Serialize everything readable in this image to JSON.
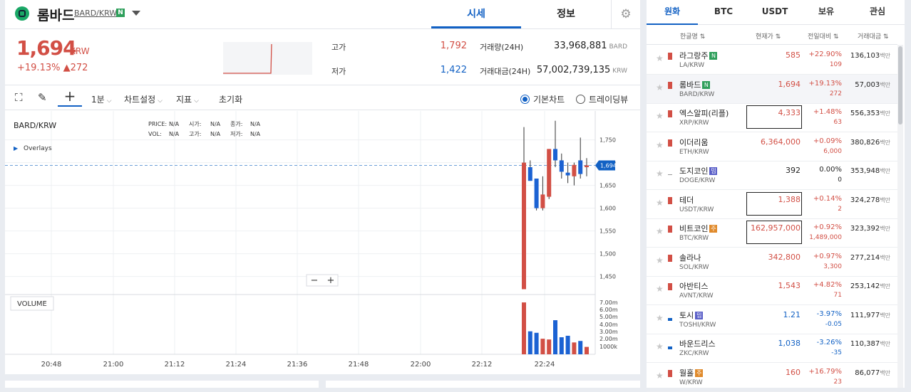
{
  "header": {
    "coin_name": "롬바드",
    "pair": "BARD/KRW",
    "badge": "N",
    "tabs": [
      "시세",
      "정보"
    ]
  },
  "price": {
    "value": "1,694",
    "unit": "KRW",
    "change_pct": "+19.13%",
    "change_amt": "▲272",
    "high_label": "고가",
    "high": "1,792",
    "low_label": "저가",
    "low": "1,422",
    "vol_label": "거래량(24H)",
    "vol": "33,968,881",
    "vol_unit": "BARD",
    "amt_label": "거래대금(24H)",
    "amt": "57,002,739,135",
    "amt_unit": "KRW"
  },
  "toolbar": {
    "interval": "1분",
    "chart_settings": "차트설정",
    "indicators": "지표",
    "reset": "초기화",
    "basic_chart": "기본차트",
    "trading_view": "트레이딩뷰"
  },
  "chart": {
    "symbol": "BARD/KRW",
    "overlays": "Overlays",
    "legend1": [
      "PRICE:",
      "N/A",
      "시가:",
      "N/A",
      "종가:",
      "N/A"
    ],
    "legend2": [
      "VOL:",
      "N/A",
      "고가:",
      "N/A",
      "저가:",
      "N/A"
    ],
    "volume_label": "VOLUME",
    "current": "1,694"
  },
  "chart_data": {
    "type": "candlestick",
    "x_ticks": [
      "20:48",
      "21:00",
      "21:12",
      "21:24",
      "21:36",
      "21:48",
      "22:00",
      "22:12",
      "22:24"
    ],
    "y_ticks": [
      "1,750",
      "1,700",
      "1,650",
      "1,600",
      "1,550",
      "1,500",
      "1,450"
    ],
    "vol_ticks": [
      "7.00m",
      "6.00m",
      "5.00m",
      "4.00m",
      "3.00m",
      "2.00m",
      "1000k"
    ],
    "ylim": [
      1415,
      1790
    ],
    "candles": [
      {
        "o": 1422,
        "h": 1778,
        "l": 1422,
        "c": 1700,
        "dir": "up"
      },
      {
        "o": 1690,
        "h": 1705,
        "l": 1660,
        "c": 1660,
        "dir": "down"
      },
      {
        "o": 1665,
        "h": 1665,
        "l": 1595,
        "c": 1600,
        "dir": "down"
      },
      {
        "o": 1600,
        "h": 1670,
        "l": 1595,
        "c": 1630,
        "dir": "up"
      },
      {
        "o": 1625,
        "h": 1730,
        "l": 1620,
        "c": 1730,
        "dir": "up"
      },
      {
        "o": 1730,
        "h": 1792,
        "l": 1690,
        "c": 1705,
        "dir": "down"
      },
      {
        "o": 1705,
        "h": 1720,
        "l": 1665,
        "c": 1680,
        "dir": "down"
      },
      {
        "o": 1678,
        "h": 1700,
        "l": 1655,
        "c": 1672,
        "dir": "down"
      },
      {
        "o": 1670,
        "h": 1700,
        "l": 1650,
        "c": 1695,
        "dir": "up"
      },
      {
        "o": 1705,
        "h": 1755,
        "l": 1665,
        "c": 1675,
        "dir": "down"
      },
      {
        "o": 1690,
        "h": 1710,
        "l": 1670,
        "c": 1694,
        "dir": "up"
      }
    ],
    "volumes": [
      7.0,
      3.1,
      2.9,
      2.1,
      2.0,
      4.6,
      2.3,
      2.5,
      1.6,
      1.8,
      1.0
    ]
  },
  "market": {
    "tabs": [
      "원화",
      "BTC",
      "USDT",
      "보유",
      "관심"
    ],
    "headers": [
      "한글명",
      "현재가",
      "전일대비",
      "거래대금"
    ],
    "vol_unit": "백만",
    "rows": [
      {
        "name": "라그랑주",
        "badge": "N",
        "bcolor": "#2e9f5b",
        "pair": "LA/KRW",
        "price": "585",
        "pct": "+22.90%",
        "amt": "109",
        "vol": "136,103",
        "dir": "up"
      },
      {
        "name": "롬바드",
        "badge": "N",
        "bcolor": "#2e9f5b",
        "pair": "BARD/KRW",
        "price": "1,694",
        "pct": "+19.13%",
        "amt": "272",
        "vol": "57,003",
        "dir": "up",
        "sel": true
      },
      {
        "name": "엑스알피(리플)",
        "badge": "",
        "pair": "XRP/KRW",
        "price": "4,333",
        "pct": "+1.48%",
        "amt": "63",
        "vol": "556,353",
        "dir": "up",
        "box": true
      },
      {
        "name": "이더리움",
        "badge": "",
        "pair": "ETH/KRW",
        "price": "6,364,000",
        "pct": "+0.09%",
        "amt": "6,000",
        "vol": "380,826",
        "dir": "up"
      },
      {
        "name": "도지코인",
        "badge": "밈",
        "bcolor": "#5a5fc8",
        "pair": "DOGE/KRW",
        "price": "392",
        "pct": "0.00%",
        "amt": "0",
        "vol": "353,948",
        "dir": "fl"
      },
      {
        "name": "테더",
        "badge": "",
        "pair": "USDT/KRW",
        "price": "1,388",
        "pct": "+0.14%",
        "amt": "2",
        "vol": "324,278",
        "dir": "up",
        "box": true
      },
      {
        "name": "비트코인",
        "badge": "주",
        "bcolor": "#e08a2b",
        "pair": "BTC/KRW",
        "price": "162,957,000",
        "pct": "+0.92%",
        "amt": "1,489,000",
        "vol": "323,392",
        "dir": "up",
        "box": true
      },
      {
        "name": "솔라나",
        "badge": "",
        "pair": "SOL/KRW",
        "price": "342,800",
        "pct": "+0.97%",
        "amt": "3,300",
        "vol": "277,214",
        "dir": "up"
      },
      {
        "name": "아반티스",
        "badge": "",
        "pair": "AVNT/KRW",
        "price": "1,543",
        "pct": "+4.82%",
        "amt": "71",
        "vol": "253,142",
        "dir": "up"
      },
      {
        "name": "토시",
        "badge": "밈",
        "bcolor": "#5a5fc8",
        "pair": "TOSHI/KRW",
        "price": "1.21",
        "pct": "-3.97%",
        "amt": "-0.05",
        "vol": "111,977",
        "dir": "dn"
      },
      {
        "name": "바운드리스",
        "badge": "",
        "pair": "ZKC/KRW",
        "price": "1,038",
        "pct": "-3.26%",
        "amt": "-35",
        "vol": "110,387",
        "dir": "dn"
      },
      {
        "name": "월홀",
        "badge": "주",
        "bcolor": "#e08a2b",
        "pair": "W/KRW",
        "price": "160",
        "pct": "+16.79%",
        "amt": "23",
        "vol": "86,077",
        "dir": "up"
      }
    ]
  }
}
